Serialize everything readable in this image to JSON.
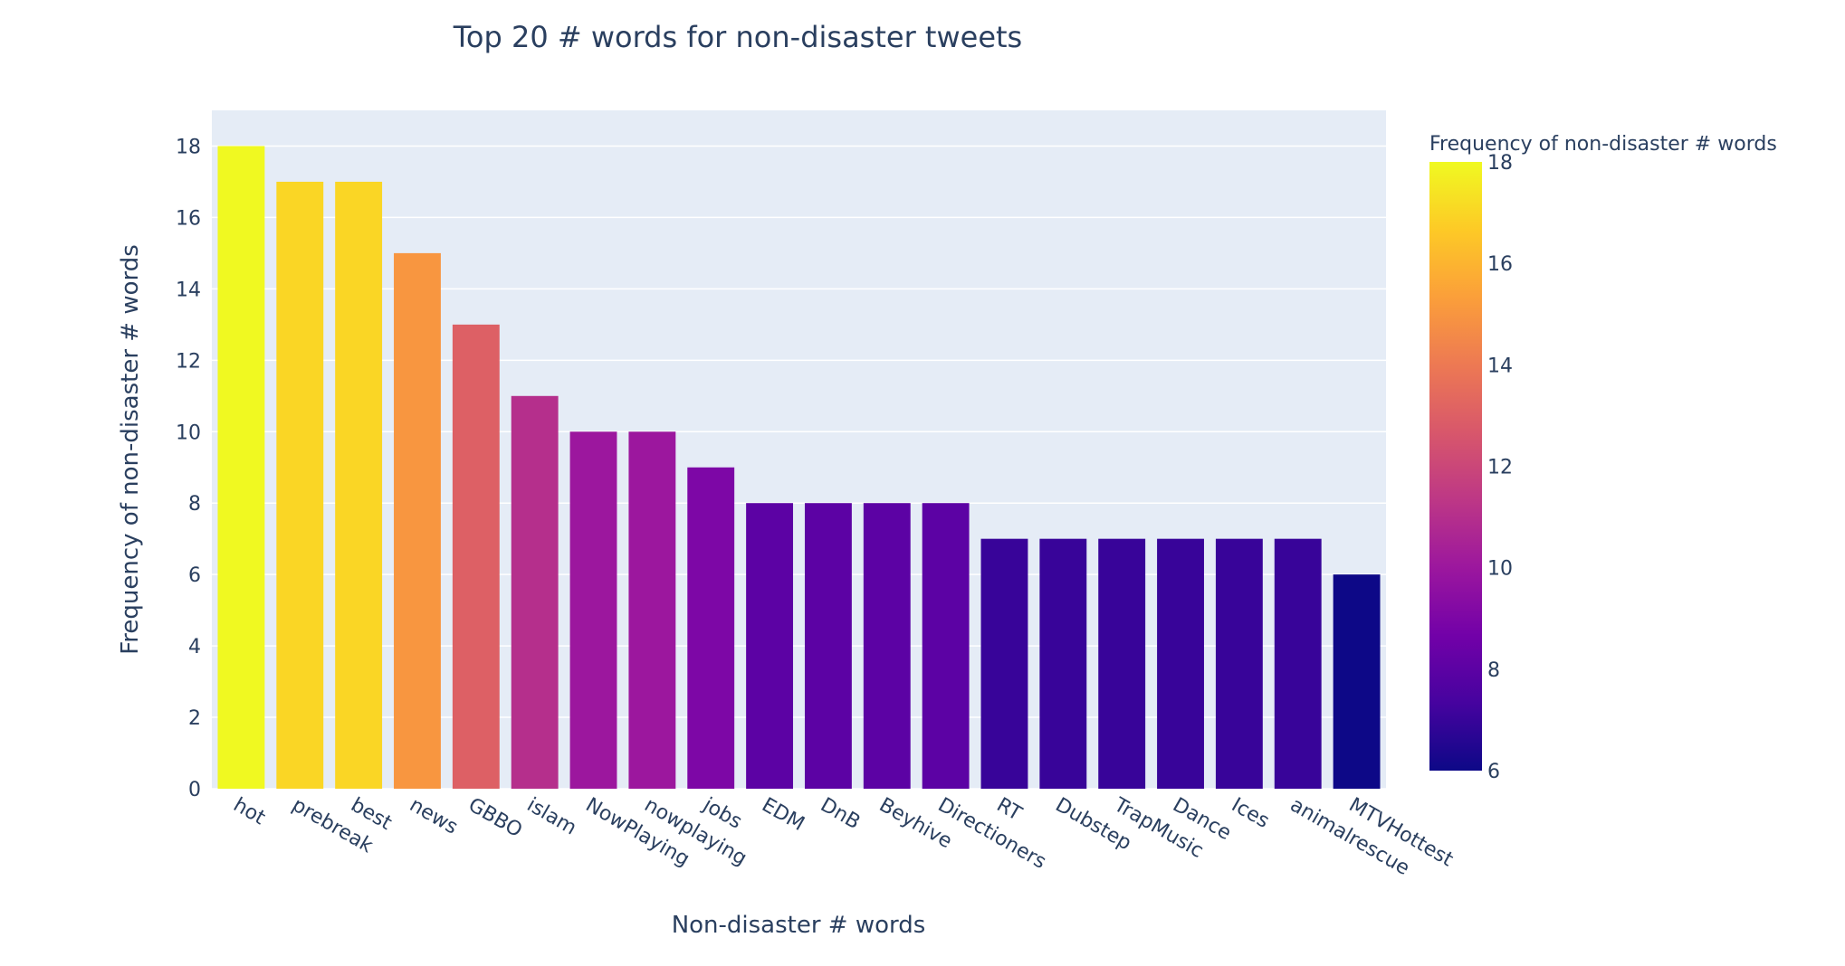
{
  "chart_data": {
    "type": "bar",
    "title": "Top 20 # words for non-disaster tweets",
    "xlabel": "Non-disaster # words",
    "ylabel": "Frequency of non-disaster # words",
    "categories": [
      "hot",
      "prebreak",
      "best",
      "news",
      "GBBO",
      "islam",
      "NowPlaying",
      "nowplaying",
      "jobs",
      "EDM",
      "DnB",
      "Beyhive",
      "Directioners",
      "RT",
      "Dubstep",
      "TrapMusic",
      "Dance",
      "Ices",
      "animalrescue",
      "MTVHottest"
    ],
    "values": [
      18,
      17,
      17,
      15,
      13,
      11,
      10,
      10,
      9,
      8,
      8,
      8,
      8,
      7,
      7,
      7,
      7,
      7,
      7,
      6
    ],
    "ylim": [
      0,
      19
    ],
    "yticks": [
      0,
      2,
      4,
      6,
      8,
      10,
      12,
      14,
      16,
      18
    ],
    "grid": true,
    "legend": "none",
    "colorbar": {
      "title": "Frequency of non-disaster # words",
      "range": [
        6,
        18
      ],
      "ticks": [
        6,
        8,
        10,
        12,
        14,
        16,
        18
      ],
      "colorscale": [
        "#0d0887",
        "#46039f",
        "#7201a8",
        "#9c179e",
        "#bd3786",
        "#d8576b",
        "#ed7953",
        "#fb9f3a",
        "#fdca26",
        "#f0f921"
      ]
    },
    "colors": {
      "plot_bg": "#e5ecf6",
      "grid": "#ffffff",
      "text": "#2a3f5f"
    }
  }
}
